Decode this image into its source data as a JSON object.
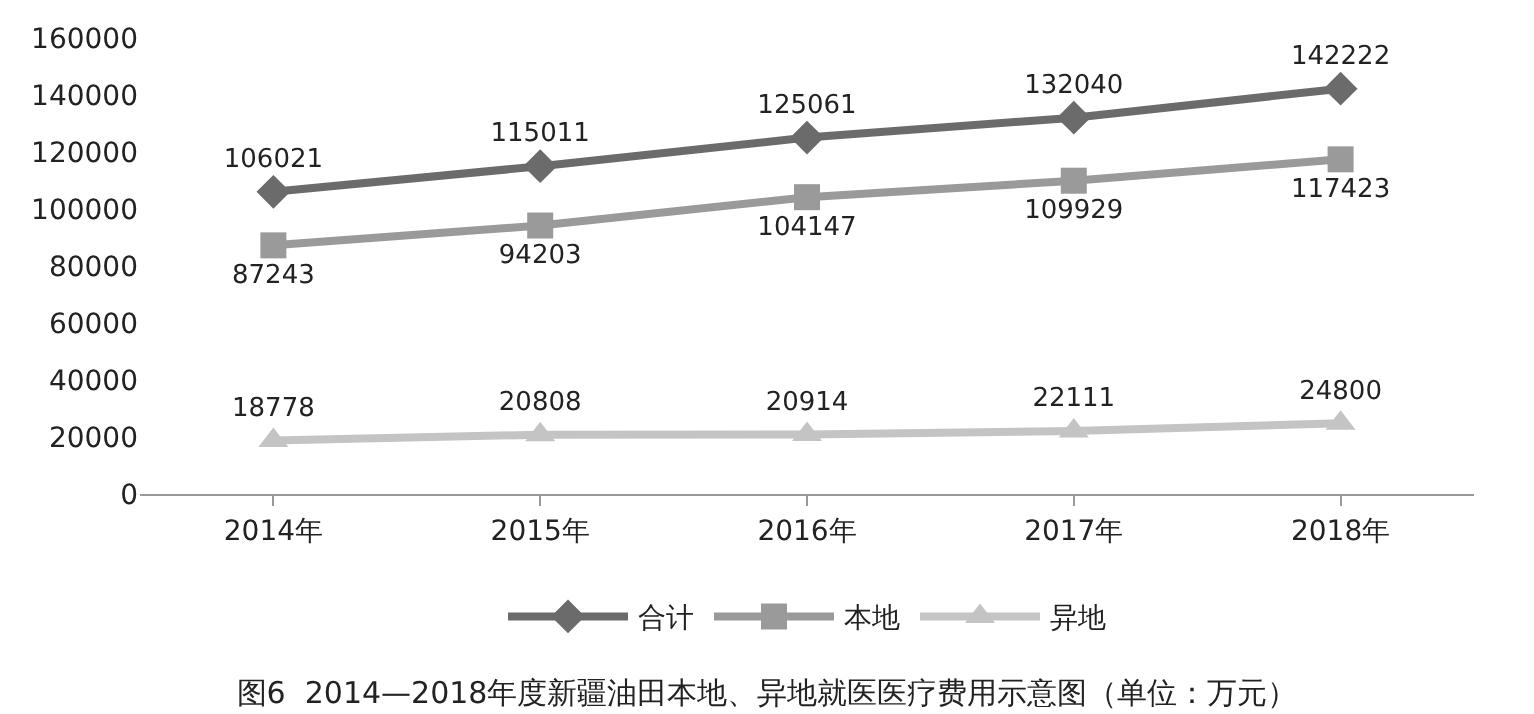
{
  "chart_data": {
    "type": "line",
    "title": "图6  2014—2018年度新疆油田本地、异地就医医疗费用示意图（单位：万元）",
    "categories": [
      "2014年",
      "2015年",
      "2016年",
      "2017年",
      "2018年"
    ],
    "series": [
      {
        "name": "合计",
        "color": "#6b6b6b",
        "marker": "diamond",
        "values": [
          106021,
          115011,
          125061,
          132040,
          142222
        ]
      },
      {
        "name": "本地",
        "color": "#9a9a9a",
        "marker": "square",
        "values": [
          87243,
          94203,
          104147,
          109929,
          117423
        ]
      },
      {
        "name": "异地",
        "color": "#c4c4c4",
        "marker": "triangle",
        "values": [
          18778,
          20808,
          20914,
          22111,
          24800
        ]
      }
    ],
    "ylim": [
      0,
      160000
    ],
    "yticks": [
      0,
      20000,
      40000,
      60000,
      80000,
      100000,
      120000,
      140000,
      160000
    ],
    "grid": false,
    "legend": "bottom",
    "data_labels": true,
    "line_style": "solid"
  }
}
